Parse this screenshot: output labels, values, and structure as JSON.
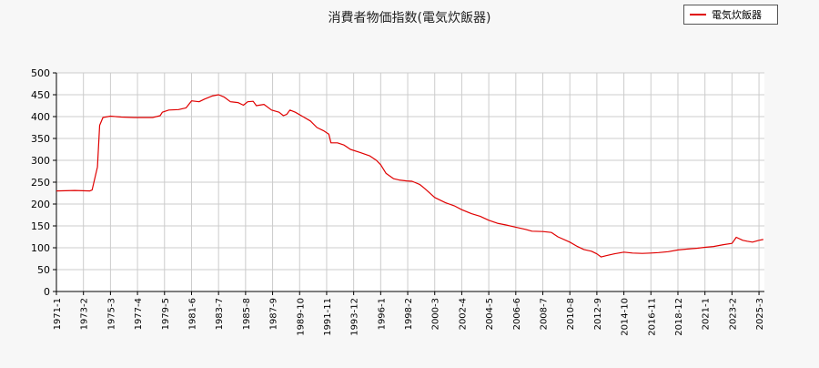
{
  "chart_data": {
    "type": "line",
    "title": "消費者物価指数(電気炊飯器)",
    "xlabel": "",
    "ylabel": "",
    "ylim": [
      0,
      500
    ],
    "yticks": [
      0,
      50,
      100,
      150,
      200,
      250,
      300,
      350,
      400,
      450,
      500
    ],
    "xtick_labels": [
      "1971-1",
      "1973-2",
      "1975-3",
      "1977-4",
      "1979-5",
      "1981-6",
      "1983-7",
      "1985-8",
      "1987-9",
      "1989-10",
      "1991-11",
      "1993-12",
      "1996-1",
      "1998-2",
      "2000-3",
      "2002-4",
      "2004-5",
      "2006-6",
      "2008-7",
      "2010-8",
      "2012-9",
      "2014-10",
      "2016-11",
      "2018-12",
      "2021-1",
      "2023-2",
      "2025-3"
    ],
    "grid": true,
    "legend_position": "top-right",
    "series": [
      {
        "name": "電気炊飯器",
        "color": "#e00000",
        "points": [
          [
            "1971-01",
            230
          ],
          [
            "1972-06",
            231
          ],
          [
            "1973-08",
            230
          ],
          [
            "1973-10",
            232
          ],
          [
            "1974-03",
            285
          ],
          [
            "1974-05",
            380
          ],
          [
            "1974-08",
            398
          ],
          [
            "1975-03",
            401
          ],
          [
            "1976-01",
            399
          ],
          [
            "1977-01",
            398
          ],
          [
            "1978-06",
            398
          ],
          [
            "1979-01",
            402
          ],
          [
            "1979-03",
            410
          ],
          [
            "1979-09",
            415
          ],
          [
            "1980-06",
            416
          ],
          [
            "1981-01",
            420
          ],
          [
            "1981-06",
            436
          ],
          [
            "1982-01",
            434
          ],
          [
            "1982-06",
            440
          ],
          [
            "1983-01",
            447
          ],
          [
            "1983-07",
            450
          ],
          [
            "1983-12",
            445
          ],
          [
            "1984-06",
            434
          ],
          [
            "1985-01",
            432
          ],
          [
            "1985-06",
            426
          ],
          [
            "1985-10",
            434
          ],
          [
            "1986-03",
            435
          ],
          [
            "1986-06",
            425
          ],
          [
            "1987-01",
            428
          ],
          [
            "1987-08",
            415
          ],
          [
            "1988-03",
            410
          ],
          [
            "1988-07",
            402
          ],
          [
            "1988-10",
            405
          ],
          [
            "1989-01",
            415
          ],
          [
            "1989-06",
            410
          ],
          [
            "1990-01",
            400
          ],
          [
            "1990-08",
            390
          ],
          [
            "1991-02",
            375
          ],
          [
            "1991-08",
            368
          ],
          [
            "1992-01",
            360
          ],
          [
            "1992-03",
            340
          ],
          [
            "1992-09",
            340
          ],
          [
            "1993-03",
            335
          ],
          [
            "1993-09",
            325
          ],
          [
            "1994-06",
            318
          ],
          [
            "1995-03",
            310
          ],
          [
            "1995-09",
            300
          ],
          [
            "1996-01",
            290
          ],
          [
            "1996-06",
            270
          ],
          [
            "1997-01",
            258
          ],
          [
            "1997-06",
            255
          ],
          [
            "1998-01",
            253
          ],
          [
            "1998-06",
            252
          ],
          [
            "1999-01",
            245
          ],
          [
            "1999-06",
            235
          ],
          [
            "2000-03",
            215
          ],
          [
            "2001-01",
            203
          ],
          [
            "2001-09",
            196
          ],
          [
            "2002-04",
            187
          ],
          [
            "2003-01",
            178
          ],
          [
            "2003-09",
            172
          ],
          [
            "2004-05",
            163
          ],
          [
            "2005-01",
            156
          ],
          [
            "2005-09",
            152
          ],
          [
            "2006-06",
            147
          ],
          [
            "2007-03",
            142
          ],
          [
            "2007-09",
            138
          ],
          [
            "2008-07",
            137
          ],
          [
            "2009-03",
            135
          ],
          [
            "2009-09",
            125
          ],
          [
            "2010-08",
            113
          ],
          [
            "2011-03",
            103
          ],
          [
            "2011-09",
            96
          ],
          [
            "2012-04",
            92
          ],
          [
            "2012-09",
            86
          ],
          [
            "2013-01",
            79
          ],
          [
            "2013-06",
            82
          ],
          [
            "2014-01",
            86
          ],
          [
            "2014-10",
            90
          ],
          [
            "2015-06",
            88
          ],
          [
            "2016-03",
            87
          ],
          [
            "2016-11",
            88
          ],
          [
            "2017-06",
            89
          ],
          [
            "2018-03",
            91
          ],
          [
            "2018-12",
            95
          ],
          [
            "2019-09",
            97
          ],
          [
            "2020-06",
            99
          ],
          [
            "2021-01",
            101
          ],
          [
            "2021-09",
            103
          ],
          [
            "2022-06",
            107
          ],
          [
            "2023-02",
            110
          ],
          [
            "2023-06",
            124
          ],
          [
            "2023-12",
            117
          ],
          [
            "2024-04",
            115
          ],
          [
            "2024-09",
            113
          ],
          [
            "2025-03",
            117
          ],
          [
            "2025-07",
            119
          ]
        ]
      }
    ]
  }
}
